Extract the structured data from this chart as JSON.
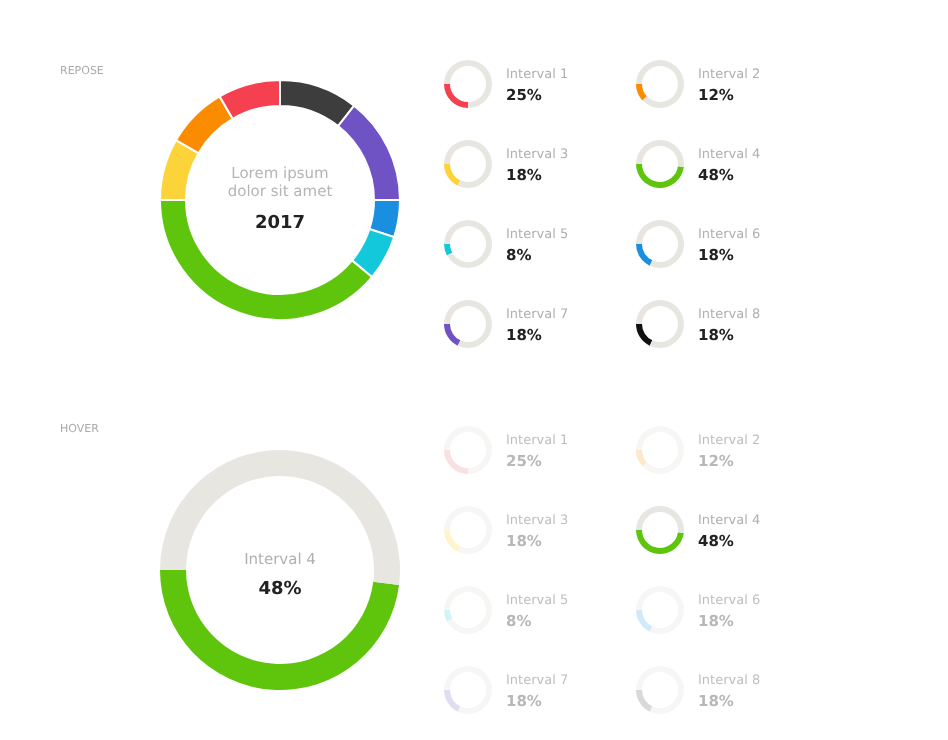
{
  "chart_data": [
    {
      "type": "donut",
      "title": "REPOSE",
      "categories": [
        null,
        null,
        null,
        null,
        null,
        null,
        null,
        null
      ],
      "values": [
        10.6,
        14.4,
        5,
        6.1,
        38.9,
        8.3,
        8.3,
        8.4
      ],
      "colors": [
        "#3d3d3d",
        "#6f52c4",
        "#1a8fe0",
        "#14c8dc",
        "#5ec40c",
        "#fdd33a",
        "#fb8c00",
        "#f4404f"
      ],
      "annotations": [
        "Lorem ipsum dolor sit amet",
        "2017"
      ]
    },
    {
      "type": "other",
      "categories": [
        "Interval 1"
      ],
      "values": [
        25
      ],
      "color": "#f4404f",
      "value_labels": [
        "25%"
      ]
    },
    {
      "type": "other",
      "categories": [
        "Interval 2"
      ],
      "values": [
        12
      ],
      "color": "#fb8c00",
      "value_labels": [
        "12%"
      ]
    },
    {
      "type": "other",
      "categories": [
        "Interval 3"
      ],
      "values": [
        18
      ],
      "color": "#fdd33a",
      "value_labels": [
        "18%"
      ]
    },
    {
      "type": "other",
      "categories": [
        "Interval 4"
      ],
      "values": [
        48
      ],
      "color": "#5ec40c",
      "value_labels": [
        "48%"
      ]
    },
    {
      "type": "other",
      "categories": [
        "Interval 5"
      ],
      "values": [
        8
      ],
      "color": "#14c8dc",
      "value_labels": [
        "8%"
      ]
    },
    {
      "type": "other",
      "categories": [
        "Interval 6"
      ],
      "values": [
        18
      ],
      "color": "#1a8fe0",
      "value_labels": [
        "18%"
      ]
    },
    {
      "type": "other",
      "categories": [
        "Interval 7"
      ],
      "values": [
        18
      ],
      "color": "#6f52c4",
      "value_labels": [
        "18%"
      ]
    },
    {
      "type": "other",
      "categories": [
        "Interval 8"
      ],
      "values": [
        18
      ],
      "color": "#111111",
      "value_labels": [
        "18%"
      ]
    },
    {
      "type": "donut",
      "title": "HOVER",
      "categories": [
        "Interval 4",
        null
      ],
      "values": [
        48,
        52
      ],
      "colors": [
        "#5ec40c",
        "#e8e6e1"
      ],
      "value_labels": [
        "48%",
        null
      ]
    },
    {
      "type": "other",
      "categories": [
        "Interval 1"
      ],
      "values": [
        25
      ],
      "color": "#fbe0e2",
      "value_labels": [
        "25%"
      ]
    },
    {
      "type": "other",
      "categories": [
        "Interval 2"
      ],
      "values": [
        12
      ],
      "color": "#fee8cc",
      "value_labels": [
        "12%"
      ]
    },
    {
      "type": "other",
      "categories": [
        "Interval 3"
      ],
      "values": [
        18
      ],
      "color": "#fff4cc",
      "value_labels": [
        "18%"
      ]
    },
    {
      "type": "other",
      "categories": [
        "Interval 4"
      ],
      "values": [
        48
      ],
      "color": "#5ec40c",
      "value_labels": [
        "48%"
      ]
    },
    {
      "type": "other",
      "categories": [
        "Interval 5"
      ],
      "values": [
        8
      ],
      "color": "#d0f4f8",
      "value_labels": [
        "8%"
      ]
    },
    {
      "type": "other",
      "categories": [
        "Interval 6"
      ],
      "values": [
        18
      ],
      "color": "#d1e9f9",
      "value_labels": [
        "18%"
      ]
    },
    {
      "type": "other",
      "categories": [
        "Interval 7"
      ],
      "values": [
        18
      ],
      "color": "#e2dcf3",
      "value_labels": [
        "18%"
      ]
    },
    {
      "type": "other",
      "categories": [
        "Interval 8"
      ],
      "values": [
        18
      ],
      "color": "#d9d9d9",
      "value_labels": [
        "18%"
      ]
    }
  ]
}
